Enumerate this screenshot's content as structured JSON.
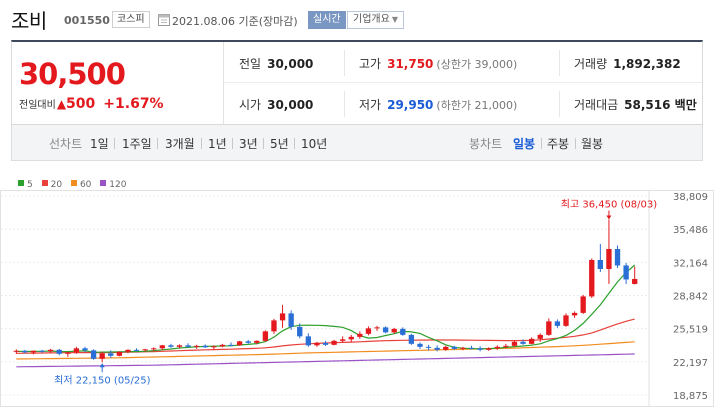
{
  "header": {
    "name": "조비",
    "code": "001550",
    "market": "코스피",
    "date_text": "2021.08.06 기준(장마감)",
    "realtime_label": "실시간",
    "overview_label": "기업개요"
  },
  "summary": {
    "current_price": "30,500",
    "change_label": "전일대비",
    "change_arrow": "▲",
    "change_amount": "500",
    "change_percent": "+1.67%",
    "prev_close": {
      "label": "전일",
      "value": "30,000"
    },
    "open": {
      "label": "시가",
      "value": "30,000"
    },
    "high": {
      "label": "고가",
      "value": "31,750",
      "sub": "(상한가 39,000)"
    },
    "low": {
      "label": "저가",
      "value": "29,950",
      "sub": "(하한가 21,000)"
    },
    "volume": {
      "label": "거래량",
      "value": "1,892,382"
    },
    "amount": {
      "label": "거래대금",
      "value": "58,516 백만"
    }
  },
  "period_bar": {
    "line_label": "선차트",
    "line_periods": [
      "1일",
      "1주일",
      "3개월",
      "1년",
      "3년",
      "5년",
      "10년"
    ],
    "candle_label": "봉차트",
    "candle_periods": [
      "일봉",
      "주봉",
      "월봉"
    ],
    "active_candle": "일봉"
  },
  "chart_data": {
    "type": "candlestick",
    "legend": [
      {
        "name": "5",
        "color": "#2ca02c"
      },
      {
        "name": "20",
        "color": "#e8403a"
      },
      {
        "name": "60",
        "color": "#f28c1e"
      },
      {
        "name": "120",
        "color": "#9a52c7"
      }
    ],
    "y_ticks": [
      "38,809",
      "35,486",
      "32,164",
      "28,842",
      "25,519",
      "22,197",
      "18,875"
    ],
    "ylim": [
      18875,
      38809
    ],
    "annotations": {
      "high": "최고 36,450 (08/03)",
      "low": "최저 22,150 (05/25)"
    },
    "colors": {
      "up": "#e3191e",
      "down": "#2a6fd6"
    },
    "candles": [
      [
        23250,
        23450,
        23000,
        23300
      ],
      [
        23300,
        23400,
        23050,
        23150
      ],
      [
        23150,
        23350,
        22950,
        23300
      ],
      [
        23300,
        23400,
        23100,
        23250
      ],
      [
        23250,
        23500,
        23100,
        23400
      ],
      [
        23400,
        23500,
        22850,
        23000
      ],
      [
        23000,
        23200,
        22700,
        23150
      ],
      [
        23150,
        23700,
        23000,
        23550
      ],
      [
        23550,
        23700,
        23150,
        23350
      ],
      [
        23350,
        23450,
        22400,
        22500
      ],
      [
        22500,
        23200,
        22150,
        23050
      ],
      [
        23050,
        23350,
        22600,
        22800
      ],
      [
        22800,
        23250,
        22750,
        23200
      ],
      [
        23200,
        23450,
        23050,
        23400
      ],
      [
        23400,
        23550,
        23250,
        23350
      ],
      [
        23350,
        23500,
        23200,
        23450
      ],
      [
        23450,
        23650,
        23300,
        23550
      ],
      [
        23550,
        23900,
        23400,
        23850
      ],
      [
        23850,
        24000,
        23600,
        23700
      ],
      [
        23700,
        23950,
        23550,
        23850
      ],
      [
        23850,
        24050,
        23650,
        23700
      ],
      [
        23700,
        23900,
        23500,
        23800
      ],
      [
        23800,
        23950,
        23600,
        23650
      ],
      [
        23650,
        23850,
        23450,
        23750
      ],
      [
        23750,
        24000,
        23650,
        23900
      ],
      [
        23900,
        24150,
        23750,
        23850
      ],
      [
        23850,
        24300,
        23800,
        24250
      ],
      [
        24250,
        24400,
        24000,
        24100
      ],
      [
        24100,
        24350,
        23950,
        24300
      ],
      [
        24300,
        25350,
        24200,
        25250
      ],
      [
        25250,
        26500,
        25000,
        26350
      ],
      [
        26350,
        27900,
        25600,
        27050
      ],
      [
        27050,
        27350,
        25400,
        25700
      ],
      [
        25700,
        26050,
        24550,
        24750
      ],
      [
        24750,
        25050,
        23700,
        23850
      ],
      [
        23850,
        24200,
        23700,
        24100
      ],
      [
        24100,
        24300,
        23800,
        23900
      ],
      [
        23900,
        24400,
        23850,
        24300
      ],
      [
        24300,
        24750,
        24100,
        24450
      ],
      [
        24450,
        24900,
        24200,
        24700
      ],
      [
        24700,
        25250,
        24500,
        25000
      ],
      [
        25000,
        25750,
        24850,
        25550
      ],
      [
        25550,
        25800,
        25300,
        25650
      ],
      [
        25650,
        25750,
        25050,
        25150
      ],
      [
        25150,
        25600,
        25000,
        25500
      ],
      [
        25500,
        25650,
        24800,
        24900
      ],
      [
        24900,
        25000,
        23900,
        24000
      ],
      [
        24000,
        24150,
        23500,
        23700
      ],
      [
        23700,
        23900,
        23350,
        23600
      ],
      [
        23600,
        23850,
        23250,
        23400
      ],
      [
        23400,
        23800,
        23300,
        23700
      ],
      [
        23700,
        23800,
        23400,
        23500
      ],
      [
        23500,
        23700,
        23350,
        23600
      ],
      [
        23600,
        23800,
        23450,
        23550
      ],
      [
        23550,
        23750,
        23250,
        23400
      ],
      [
        23400,
        23650,
        23300,
        23550
      ],
      [
        23550,
        23850,
        23400,
        23700
      ],
      [
        23700,
        24000,
        23550,
        23800
      ],
      [
        23800,
        24350,
        23700,
        24200
      ],
      [
        24200,
        24450,
        23900,
        24000
      ],
      [
        24000,
        24650,
        23950,
        24500
      ],
      [
        24500,
        25050,
        24200,
        24900
      ],
      [
        24900,
        26550,
        24800,
        26250
      ],
      [
        26250,
        26450,
        25600,
        25800
      ],
      [
        25800,
        27050,
        25700,
        26850
      ],
      [
        26850,
        27250,
        26600,
        27100
      ],
      [
        27100,
        28900,
        27000,
        28750
      ],
      [
        28750,
        32550,
        28600,
        32400
      ],
      [
        32400,
        34000,
        31200,
        31500
      ],
      [
        31500,
        36450,
        30000,
        33500
      ],
      [
        33500,
        33850,
        31600,
        31850
      ],
      [
        31850,
        32100,
        30000,
        30450
      ],
      [
        30000,
        31750,
        29950,
        30500
      ]
    ],
    "ma5": [
      23250,
      23230,
      23240,
      23250,
      23280,
      23220,
      23220,
      23270,
      23300,
      23150,
      23170,
      23180,
      23200,
      23220,
      23220,
      23240,
      23320,
      23400,
      23480,
      23580,
      23640,
      23700,
      23740,
      23760,
      23780,
      23800,
      23880,
      23940,
      24020,
      24220,
      24670,
      25310,
      25720,
      25860,
      25870,
      25860,
      25830,
      25750,
      25660,
      25330,
      24820,
      24570,
      24630,
      24840,
      25020,
      25250,
      25200,
      25050,
      24640,
      24300,
      23900,
      23650,
      23560,
      23520,
      23500,
      23520,
      23560,
      23640,
      23720,
      23780,
      23860,
      24000,
      24300,
      24520,
      24850,
      25350,
      26050,
      26960,
      27900,
      29050,
      30200,
      31150,
      31900
    ],
    "ma20": [
      23050,
      23060,
      23070,
      23080,
      23090,
      23100,
      23110,
      23120,
      23130,
      23120,
      23120,
      23130,
      23140,
      23160,
      23180,
      23200,
      23220,
      23250,
      23280,
      23310,
      23340,
      23370,
      23400,
      23420,
      23440,
      23460,
      23490,
      23520,
      23550,
      23600,
      23680,
      23790,
      23880,
      23950,
      24000,
      24040,
      24080,
      24110,
      24140,
      24170,
      24200,
      24240,
      24280,
      24310,
      24330,
      24350,
      24360,
      24370,
      24380,
      24380,
      24380,
      24380,
      24370,
      24360,
      24350,
      24340,
      24330,
      24320,
      24320,
      24330,
      24350,
      24400,
      24480,
      24560,
      24650,
      24760,
      24900,
      25100,
      25380,
      25700,
      26000,
      26260,
      26480
    ],
    "ma60": [
      22480,
      22490,
      22500,
      22510,
      22520,
      22530,
      22540,
      22550,
      22560,
      22570,
      22580,
      22590,
      22600,
      22620,
      22640,
      22660,
      22680,
      22700,
      22720,
      22740,
      22760,
      22780,
      22800,
      22820,
      22840,
      22860,
      22880,
      22900,
      22920,
      22940,
      22970,
      23000,
      23030,
      23060,
      23090,
      23110,
      23130,
      23150,
      23170,
      23190,
      23210,
      23230,
      23250,
      23270,
      23290,
      23310,
      23330,
      23350,
      23370,
      23390,
      23410,
      23430,
      23450,
      23470,
      23490,
      23510,
      23530,
      23550,
      23570,
      23600,
      23630,
      23660,
      23690,
      23720,
      23760,
      23800,
      23850,
      23900,
      23960,
      24020,
      24080,
      24140,
      24200
    ],
    "ma120": [
      21700,
      21710,
      21720,
      21730,
      21740,
      21750,
      21760,
      21770,
      21780,
      21790,
      21800,
      21810,
      21820,
      21830,
      21840,
      21850,
      21860,
      21880,
      21900,
      21920,
      21940,
      21960,
      21980,
      22000,
      22020,
      22040,
      22060,
      22080,
      22100,
      22120,
      22140,
      22160,
      22180,
      22200,
      22220,
      22240,
      22260,
      22280,
      22300,
      22320,
      22340,
      22360,
      22380,
      22400,
      22420,
      22440,
      22460,
      22480,
      22500,
      22520,
      22540,
      22560,
      22580,
      22600,
      22620,
      22640,
      22660,
      22680,
      22700,
      22720,
      22740,
      22760,
      22780,
      22800,
      22820,
      22840,
      22860,
      22880,
      22900,
      22920,
      22940,
      22960,
      22980
    ]
  }
}
